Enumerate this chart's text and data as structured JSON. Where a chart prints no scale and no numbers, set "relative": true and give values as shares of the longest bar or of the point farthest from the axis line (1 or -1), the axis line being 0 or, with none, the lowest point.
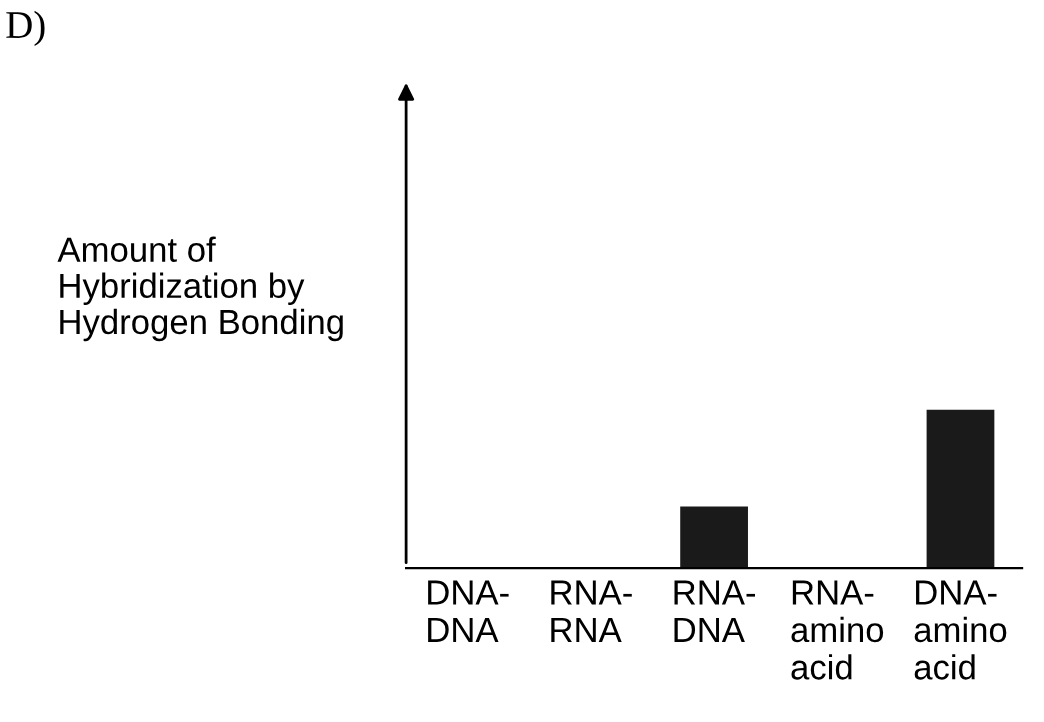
{
  "chart_data": {
    "type": "bar",
    "title": "D)",
    "ylabel": "Amount of\nHybridization by\nHydrogen Bonding",
    "categories": [
      "DNA-\nDNA",
      "RNA-\nRNA",
      "RNA-\nDNA",
      "RNA-\namino\nacid",
      "DNA-\namino\nacid"
    ],
    "values": [
      0,
      0,
      0.39,
      0,
      1
    ],
    "color": "#1a1a1a",
    "relative": true,
    "grid": false,
    "legend": false
  }
}
